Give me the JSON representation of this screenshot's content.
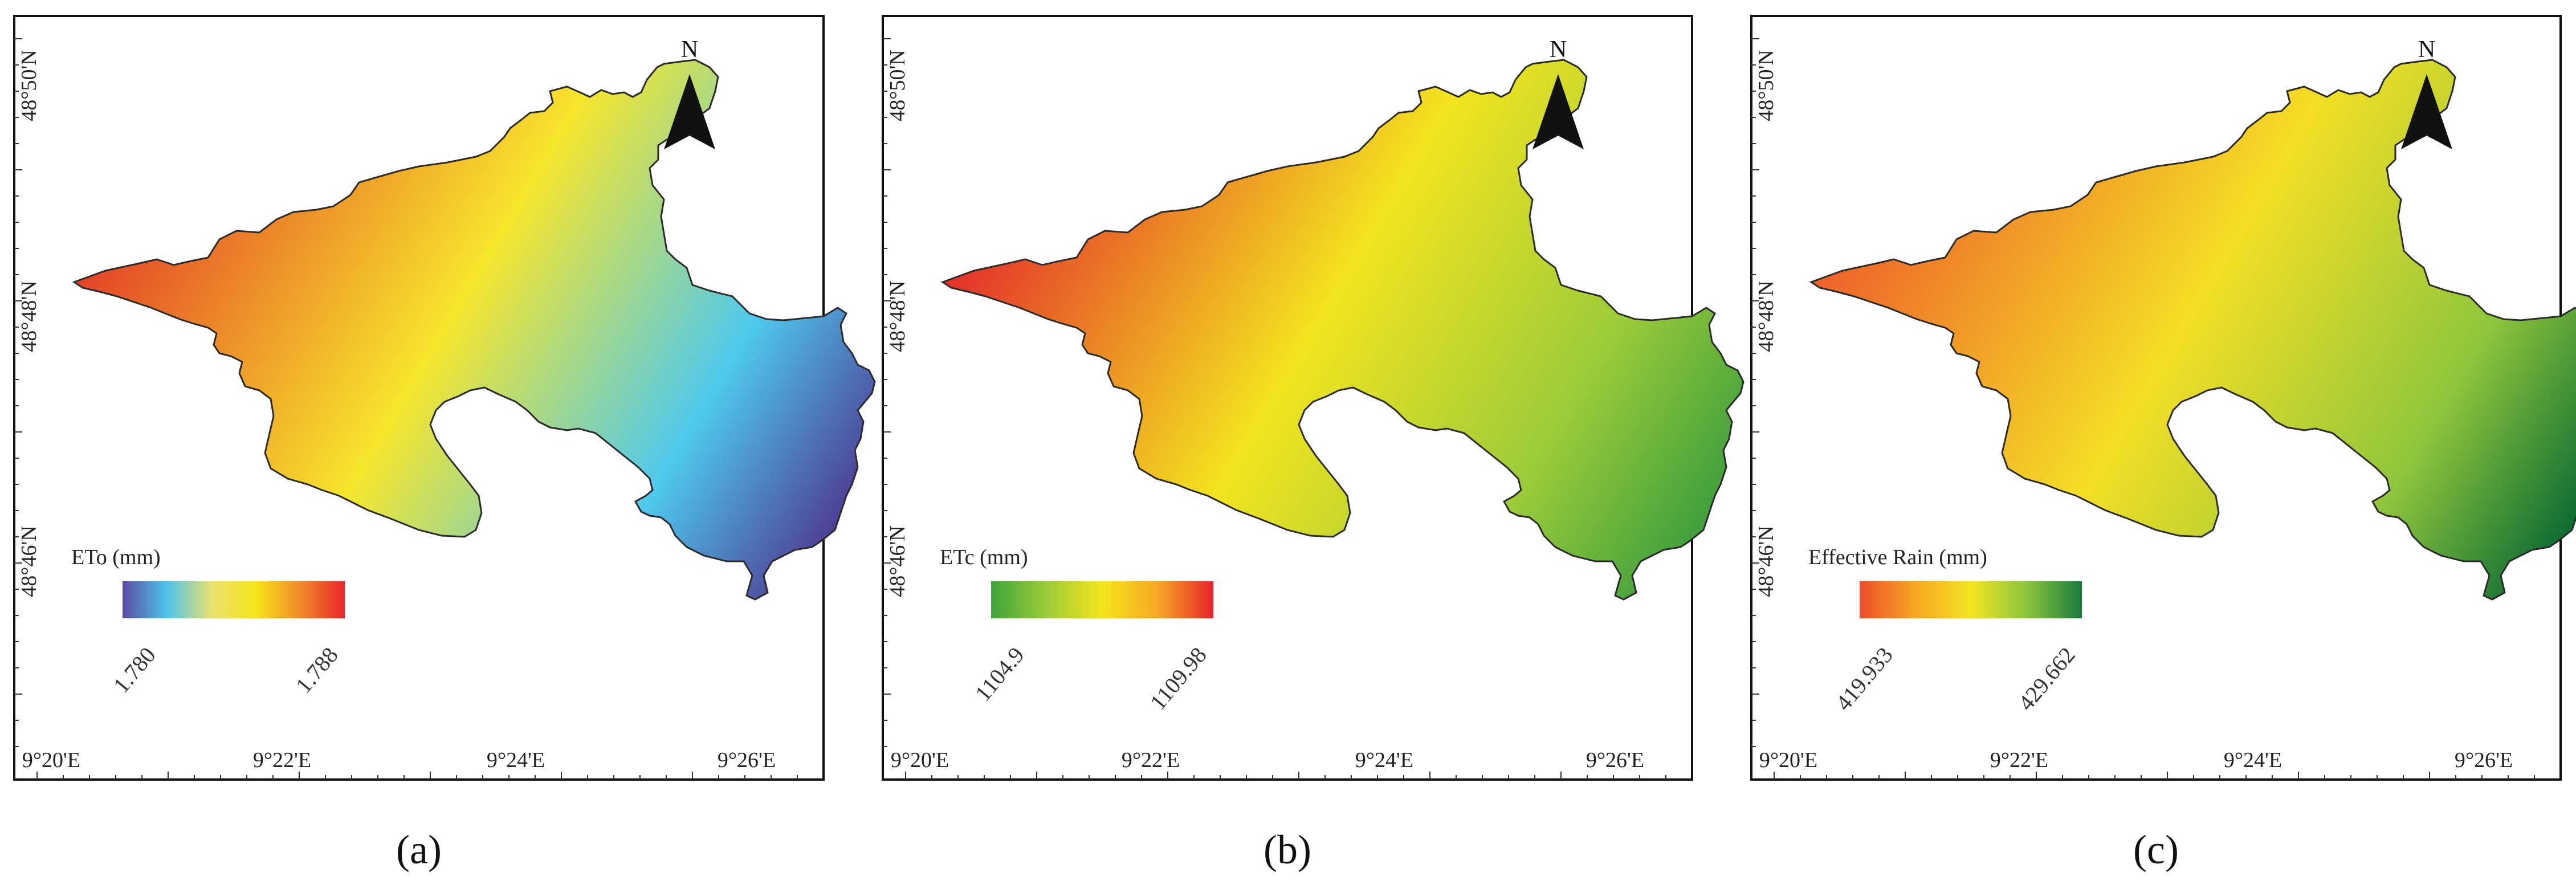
{
  "panels": [
    {
      "caption": "(a)",
      "legend_title": "ETo (mm)",
      "legend_min": "1.780",
      "legend_max": "1.788",
      "lat_labels": [
        "48°50'N",
        "48°48'N",
        "48°46'N"
      ],
      "lon_labels": [
        "9°20'E",
        "9°22'E",
        "9°24'E",
        "9°26'E"
      ],
      "north_label": "N",
      "ramp_colors": [
        "#5a4aa0",
        "#4ec4ec",
        "#e8e070",
        "#f7e51a",
        "#f08a28",
        "#e8262a"
      ],
      "map_colors": {
        "west": "#e33a27",
        "mid": "#f7e62c",
        "east": "#4ec9ee",
        "far_east": "#4e3d96"
      }
    },
    {
      "caption": "(b)",
      "legend_title": "ETc (mm)",
      "legend_min": "1104.9",
      "legend_max": "1109.98",
      "lat_labels": [
        "48°50'N",
        "48°48'N",
        "48°46'N"
      ],
      "lon_labels": [
        "9°20'E",
        "9°22'E",
        "9°24'E",
        "9°26'E"
      ],
      "north_label": "N",
      "ramp_colors": [
        "#3fa33a",
        "#9ccc38",
        "#f4e51c",
        "#f6a823",
        "#e7232b"
      ],
      "map_colors": {
        "west": "#e3262b",
        "mid": "#f3e41f",
        "east": "#9acb3a",
        "far_east": "#3e9f3c"
      }
    },
    {
      "caption": "(c)",
      "legend_title": "Effective Rain (mm)",
      "legend_min": "419.933",
      "legend_max": "429.662",
      "lat_labels": [
        "48°50'N",
        "48°48'N",
        "48°46'N"
      ],
      "lon_labels": [
        "9°20'E",
        "9°22'E",
        "9°24'E",
        "9°26'E"
      ],
      "north_label": "N",
      "ramp_colors": [
        "#ee4d29",
        "#f7a623",
        "#f3e521",
        "#8cc63e",
        "#1a7a3a"
      ],
      "map_colors": {
        "west": "#ee5a2a",
        "mid": "#f4df25",
        "east": "#8fc63c",
        "far_east": "#0b6b33"
      }
    }
  ]
}
